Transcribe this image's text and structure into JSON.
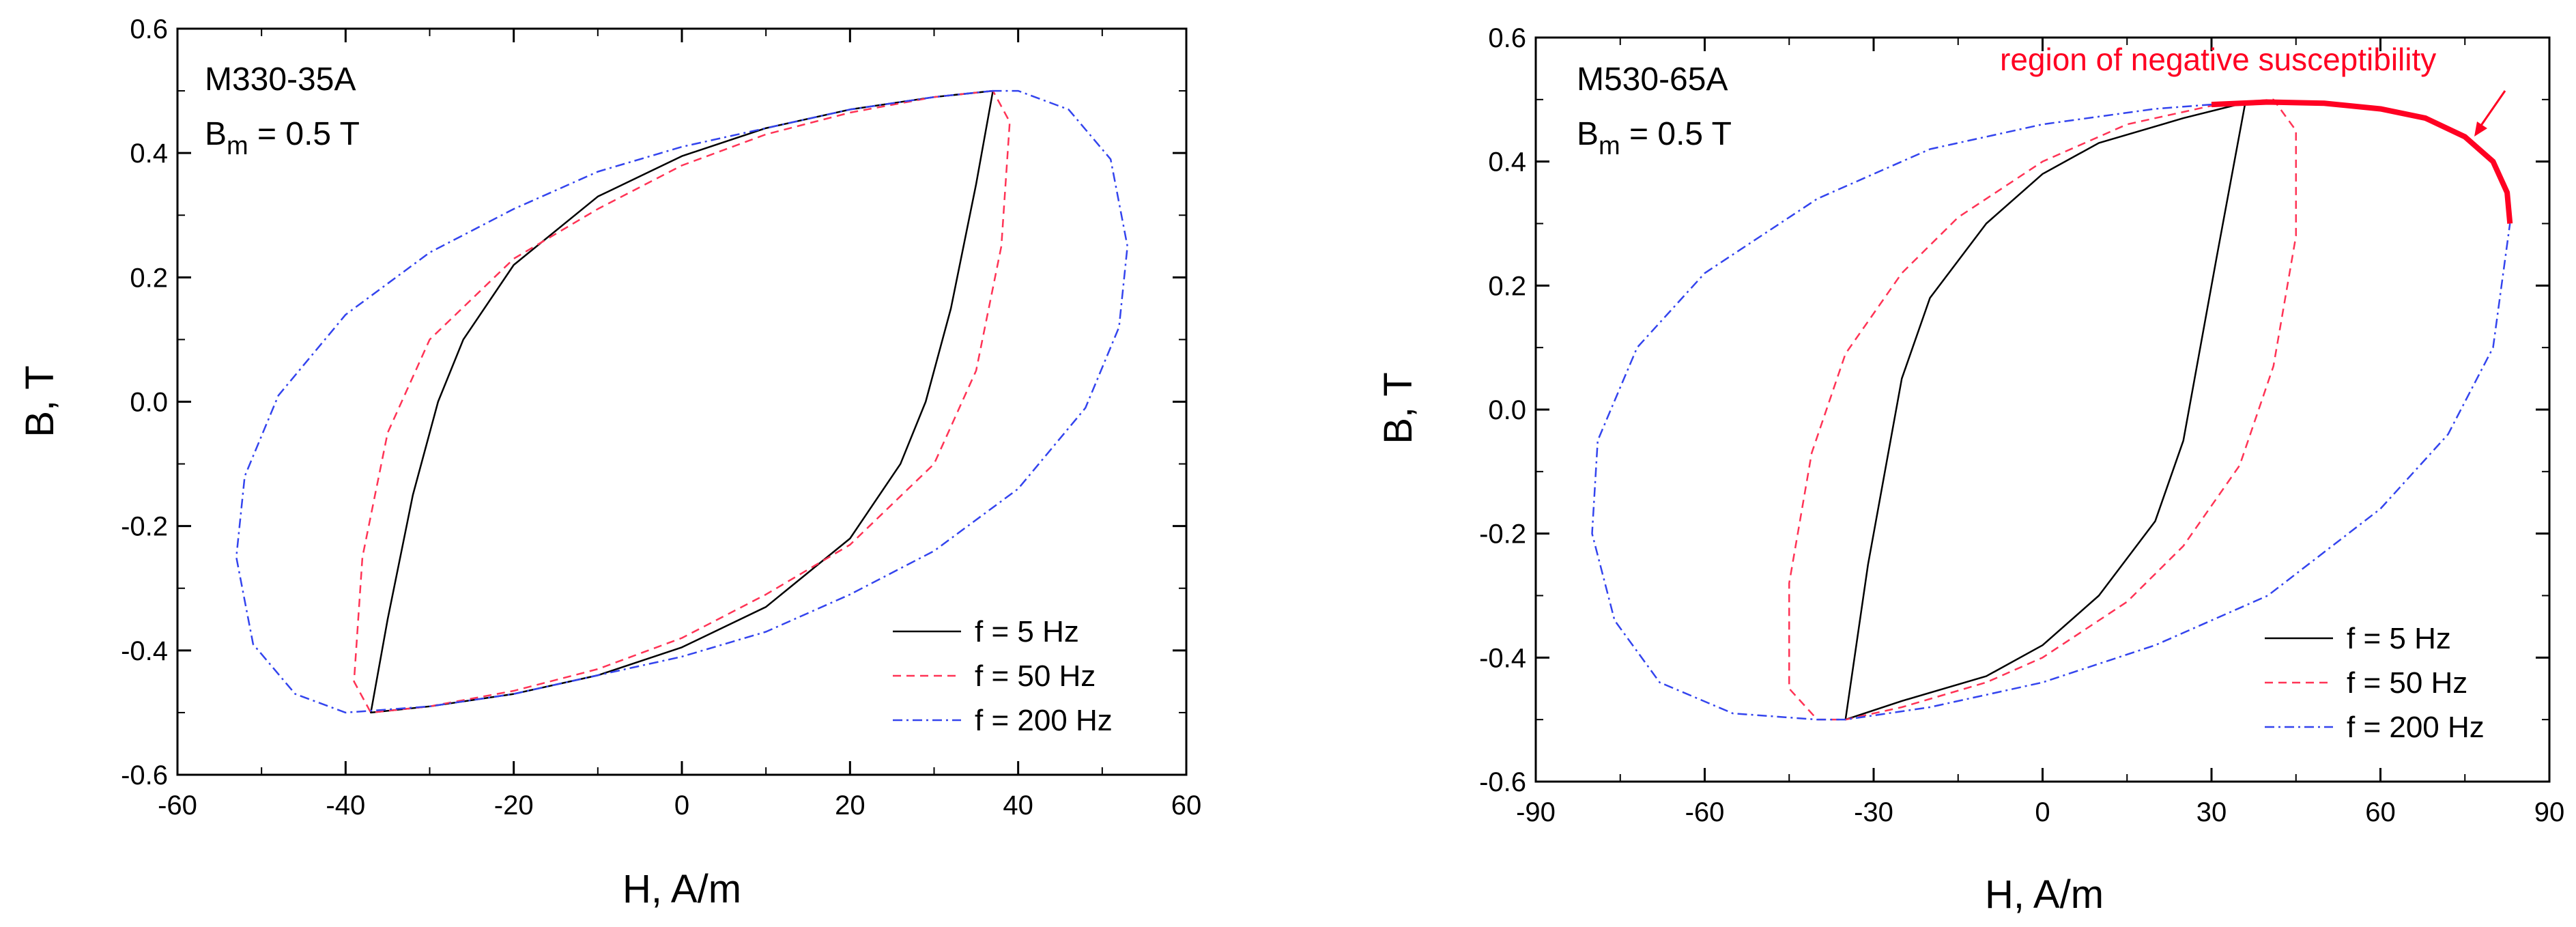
{
  "chart_data": [
    {
      "type": "line",
      "sample": "M330-35A",
      "bm_label": {
        "b": "B",
        "sub": "m",
        "rest": " = 0.5 T"
      },
      "xlabel": "H, A/m",
      "ylabel": "B, T",
      "xlim": [
        -60,
        60
      ],
      "ylim": [
        -0.6,
        0.6
      ],
      "xticks": [
        -60,
        -40,
        -20,
        0,
        20,
        40,
        60
      ],
      "xtick_labels": [
        "-60",
        "-40",
        "-20",
        "0",
        "20",
        "40",
        "60"
      ],
      "yticks": [
        -0.6,
        -0.4,
        -0.2,
        0.0,
        0.2,
        0.4,
        0.6
      ],
      "ytick_labels": [
        "-0.6",
        "-0.4",
        "-0.2",
        "0.0",
        "0.2",
        "0.4",
        "0.6"
      ],
      "legend_position": "bottom-right",
      "series": [
        {
          "name": "f = 5 Hz",
          "color": "#000000",
          "style": "solid",
          "upper": [
            [
              37,
              0.5
            ],
            [
              30,
              0.49
            ],
            [
              20,
              0.47
            ],
            [
              10,
              0.44
            ],
            [
              0,
              0.395
            ],
            [
              -10,
              0.33
            ],
            [
              -20,
              0.22
            ],
            [
              -26,
              0.1
            ],
            [
              -29,
              0.0
            ],
            [
              -32,
              -0.15
            ],
            [
              -35,
              -0.35
            ],
            [
              -37,
              -0.5
            ]
          ],
          "lower": [
            [
              -37,
              -0.5
            ],
            [
              -30,
              -0.49
            ],
            [
              -20,
              -0.47
            ],
            [
              -10,
              -0.44
            ],
            [
              0,
              -0.395
            ],
            [
              10,
              -0.33
            ],
            [
              20,
              -0.22
            ],
            [
              26,
              -0.1
            ],
            [
              29,
              0.0
            ],
            [
              32,
              0.15
            ],
            [
              35,
              0.35
            ],
            [
              37,
              0.5
            ]
          ]
        },
        {
          "name": "f = 50 Hz",
          "color": "#ff3355",
          "style": "dashed",
          "upper": [
            [
              37,
              0.5
            ],
            [
              30,
              0.49
            ],
            [
              20,
              0.465
            ],
            [
              10,
              0.43
            ],
            [
              0,
              0.38
            ],
            [
              -10,
              0.31
            ],
            [
              -20,
              0.23
            ],
            [
              -30,
              0.1
            ],
            [
              -35,
              -0.05
            ],
            [
              -38,
              -0.25
            ],
            [
              -39,
              -0.45
            ],
            [
              -37,
              -0.5
            ]
          ],
          "lower": [
            [
              -37,
              -0.5
            ],
            [
              -30,
              -0.49
            ],
            [
              -20,
              -0.465
            ],
            [
              -10,
              -0.43
            ],
            [
              0,
              -0.38
            ],
            [
              10,
              -0.31
            ],
            [
              20,
              -0.23
            ],
            [
              30,
              -0.1
            ],
            [
              35,
              0.05
            ],
            [
              38,
              0.25
            ],
            [
              39,
              0.45
            ],
            [
              37,
              0.5
            ]
          ]
        },
        {
          "name": "f = 200 Hz",
          "color": "#3344ee",
          "style": "dashdot",
          "upper": [
            [
              37,
              0.5
            ],
            [
              30,
              0.49
            ],
            [
              20,
              0.47
            ],
            [
              10,
              0.44
            ],
            [
              0,
              0.41
            ],
            [
              -10,
              0.37
            ],
            [
              -20,
              0.31
            ],
            [
              -30,
              0.24
            ],
            [
              -40,
              0.14
            ],
            [
              -48,
              0.01
            ],
            [
              -52,
              -0.12
            ],
            [
              -53,
              -0.25
            ],
            [
              -51,
              -0.39
            ],
            [
              -46,
              -0.47
            ],
            [
              -40,
              -0.5
            ]
          ],
          "lower": [
            [
              -40,
              -0.5
            ],
            [
              -30,
              -0.49
            ],
            [
              -20,
              -0.47
            ],
            [
              -10,
              -0.44
            ],
            [
              0,
              -0.41
            ],
            [
              10,
              -0.37
            ],
            [
              20,
              -0.31
            ],
            [
              30,
              -0.24
            ],
            [
              40,
              -0.14
            ],
            [
              48,
              -0.01
            ],
            [
              52,
              0.12
            ],
            [
              53,
              0.25
            ],
            [
              51,
              0.39
            ],
            [
              46,
              0.47
            ],
            [
              40,
              0.5
            ],
            [
              37,
              0.5
            ]
          ]
        }
      ]
    },
    {
      "type": "line",
      "sample": "M530-65A",
      "bm_label": {
        "b": "B",
        "sub": "m",
        "rest": " = 0.5 T"
      },
      "xlabel": "H, A/m",
      "ylabel": "B, T",
      "xlim": [
        -90,
        90
      ],
      "ylim": [
        -0.6,
        0.6
      ],
      "xticks": [
        -90,
        -60,
        -30,
        0,
        30,
        60,
        90
      ],
      "xtick_labels": [
        "-90",
        "-60",
        "-30",
        "0",
        "30",
        "60",
        "90"
      ],
      "yticks": [
        -0.6,
        -0.4,
        -0.2,
        0.0,
        0.2,
        0.4,
        0.6
      ],
      "ytick_labels": [
        "-0.6",
        "-0.4",
        "-0.2",
        "0.0",
        "0.2",
        "0.4",
        "0.6"
      ],
      "legend_position": "bottom-right",
      "annotation": {
        "text": "region of negative susceptibility",
        "color": "#ff0022"
      },
      "highlight": {
        "color": "#ff0022",
        "points": [
          [
            30,
            0.492
          ],
          [
            40,
            0.496
          ],
          [
            50,
            0.494
          ],
          [
            60,
            0.485
          ],
          [
            68,
            0.47
          ],
          [
            75,
            0.44
          ],
          [
            80,
            0.4
          ],
          [
            82.5,
            0.35
          ],
          [
            83,
            0.3
          ]
        ]
      },
      "series": [
        {
          "name": "f = 5 Hz",
          "color": "#000000",
          "style": "solid",
          "upper": [
            [
              36,
              0.495
            ],
            [
              25,
              0.47
            ],
            [
              10,
              0.43
            ],
            [
              0,
              0.38
            ],
            [
              -10,
              0.3
            ],
            [
              -20,
              0.18
            ],
            [
              -25,
              0.05
            ],
            [
              -28,
              -0.1
            ],
            [
              -31,
              -0.25
            ],
            [
              -35,
              -0.5
            ]
          ],
          "lower": [
            [
              -35,
              -0.5
            ],
            [
              -25,
              -0.47
            ],
            [
              -10,
              -0.43
            ],
            [
              0,
              -0.38
            ],
            [
              10,
              -0.3
            ],
            [
              20,
              -0.18
            ],
            [
              25,
              -0.05
            ],
            [
              28,
              0.1
            ],
            [
              31,
              0.25
            ],
            [
              36,
              0.495
            ]
          ]
        },
        {
          "name": "f = 50 Hz",
          "color": "#ff3355",
          "style": "dashed",
          "upper": [
            [
              38,
              0.498
            ],
            [
              30,
              0.49
            ],
            [
              15,
              0.46
            ],
            [
              0,
              0.4
            ],
            [
              -15,
              0.31
            ],
            [
              -25,
              0.22
            ],
            [
              -35,
              0.09
            ],
            [
              -41,
              -0.07
            ],
            [
              -45,
              -0.28
            ],
            [
              -45,
              -0.45
            ],
            [
              -40,
              -0.5
            ],
            [
              -35,
              -0.5
            ]
          ],
          "lower": [
            [
              -35,
              -0.5
            ],
            [
              -25,
              -0.48
            ],
            [
              -10,
              -0.44
            ],
            [
              0,
              -0.4
            ],
            [
              15,
              -0.31
            ],
            [
              25,
              -0.22
            ],
            [
              35,
              -0.09
            ],
            [
              41,
              0.07
            ],
            [
              45,
              0.28
            ],
            [
              45,
              0.45
            ],
            [
              41,
              0.5
            ],
            [
              38,
              0.498
            ]
          ]
        },
        {
          "name": "f = 200 Hz",
          "color": "#3344ee",
          "style": "dashdot",
          "upper": [
            [
              30,
              0.492
            ],
            [
              20,
              0.485
            ],
            [
              0,
              0.46
            ],
            [
              -20,
              0.42
            ],
            [
              -40,
              0.34
            ],
            [
              -60,
              0.22
            ],
            [
              -72,
              0.1
            ],
            [
              -79,
              -0.05
            ],
            [
              -80,
              -0.2
            ],
            [
              -76,
              -0.34
            ],
            [
              -68,
              -0.44
            ],
            [
              -55,
              -0.49
            ],
            [
              -40,
              -0.5
            ],
            [
              -35,
              -0.5
            ]
          ],
          "lower": [
            [
              -35,
              -0.5
            ],
            [
              -20,
              -0.48
            ],
            [
              0,
              -0.44
            ],
            [
              20,
              -0.38
            ],
            [
              40,
              -0.3
            ],
            [
              60,
              -0.16
            ],
            [
              72,
              -0.04
            ],
            [
              80,
              0.1
            ],
            [
              83,
              0.3
            ]
          ]
        }
      ]
    }
  ]
}
